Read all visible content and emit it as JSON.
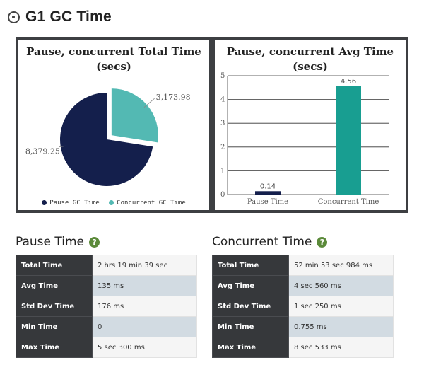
{
  "page": {
    "title": "G1 GC Time",
    "icon": "compass-icon"
  },
  "pie_chart": {
    "title_line1": "Pause, concurrent Total Time",
    "title_line2": "(secs)",
    "value_labels": [
      "8,379.25",
      "3,173.98"
    ],
    "legend": [
      "Pause GC Time",
      "Concurrent GC Time"
    ]
  },
  "bar_chart": {
    "title_line1": "Pause, concurrent Avg Time",
    "title_line2": "(secs)",
    "value_labels": [
      "0.14",
      "4.56"
    ],
    "y_tick_labels": [
      "0",
      "1",
      "2",
      "3",
      "4",
      "5"
    ]
  },
  "chart_data": [
    {
      "type": "pie",
      "title": "Pause, concurrent Total Time (secs)",
      "categories": [
        "Pause GC Time",
        "Concurrent GC Time"
      ],
      "values": [
        8379.25,
        3173.98
      ],
      "colors": [
        "#141f4c",
        "#53b9b3"
      ],
      "legend": "bottom"
    },
    {
      "type": "bar",
      "title": "Pause, concurrent Avg Time (secs)",
      "categories": [
        "Pause Time",
        "Concurrent Time"
      ],
      "values": [
        0.14,
        4.56
      ],
      "colors": [
        "#141f4c",
        "#189e91"
      ],
      "ylim": [
        0,
        5
      ],
      "yticks": [
        0,
        1,
        2,
        3,
        4,
        5
      ],
      "grid": true
    }
  ],
  "pause_time": {
    "title": "Pause Time",
    "rows": [
      {
        "label": "Total Time",
        "value": "2 hrs 19 min 39 sec"
      },
      {
        "label": "Avg Time",
        "value": "135 ms"
      },
      {
        "label": "Std Dev Time",
        "value": "176 ms"
      },
      {
        "label": "Min Time",
        "value": "0"
      },
      {
        "label": "Max Time",
        "value": "5 sec 300 ms"
      }
    ]
  },
  "concurrent_time": {
    "title": "Concurrent Time",
    "rows": [
      {
        "label": "Total Time",
        "value": "52 min 53 sec 984 ms"
      },
      {
        "label": "Avg Time",
        "value": "4 sec 560 ms"
      },
      {
        "label": "Std Dev Time",
        "value": "1 sec 250 ms"
      },
      {
        "label": "Min Time",
        "value": "0.755 ms"
      },
      {
        "label": "Max Time",
        "value": "8 sec 533 ms"
      }
    ]
  }
}
